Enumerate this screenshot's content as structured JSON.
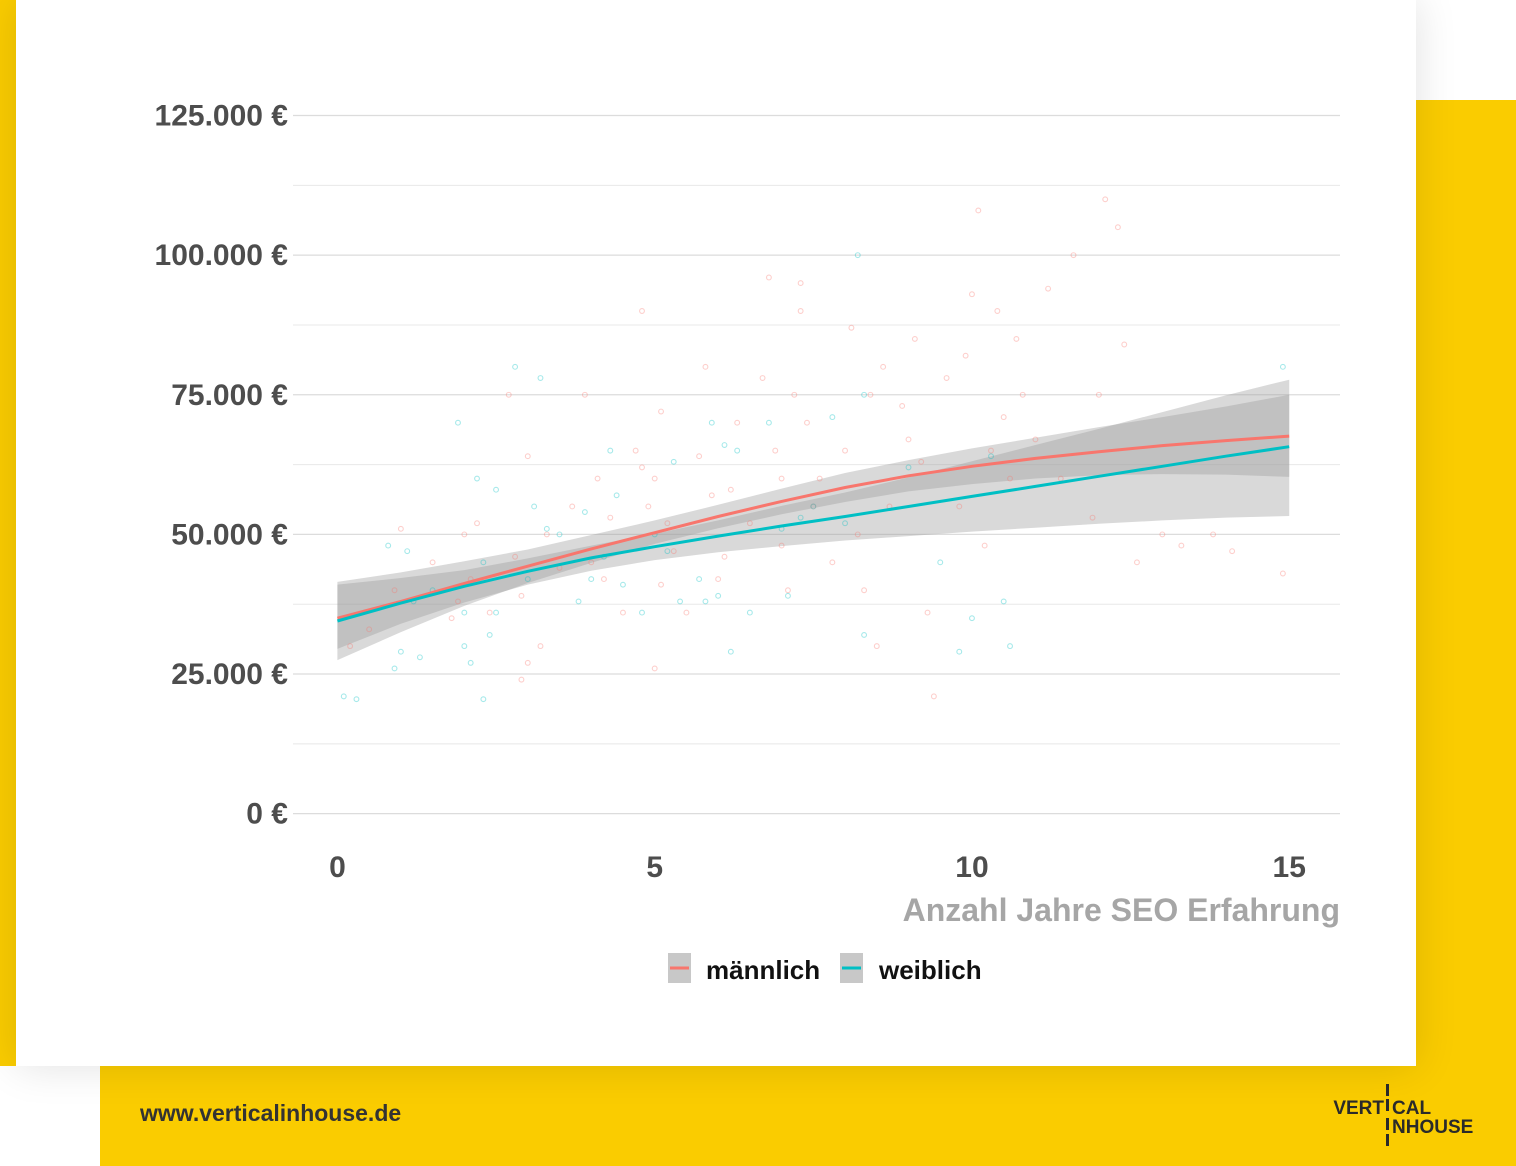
{
  "page": {
    "website": "www.verticalinhouse.de",
    "logo": {
      "line1_left": "VERT",
      "line1_right": "CAL",
      "line2_right": "NHOUSE"
    },
    "colors": {
      "yellow": "#FACC00",
      "card": "#ffffff"
    }
  },
  "chart_data": {
    "type": "scatter",
    "title": "",
    "xlabel": "Anzahl Jahre SEO Erfahrung",
    "ylabel": "",
    "xlim": [
      -0.7,
      15.8
    ],
    "ylim": [
      -4000,
      131000
    ],
    "x_ticks": [
      0,
      5,
      10,
      15
    ],
    "x_tick_labels": [
      "0",
      "5",
      "10",
      "15"
    ],
    "y_ticks": [
      0,
      25000,
      50000,
      75000,
      100000,
      125000
    ],
    "y_tick_labels": [
      "0 €",
      "25.000 €",
      "50.000 €",
      "75.000 €",
      "100.000 €",
      "125.000 €"
    ],
    "y_minor_ticks": [
      12500,
      37500,
      62500,
      87500,
      112500
    ],
    "grid": true,
    "legend_position": "bottom",
    "series": [
      {
        "name": "männlich",
        "color": "#F8766D",
        "trend_x": [
          0,
          1,
          2,
          3,
          4,
          5,
          6,
          7,
          8,
          9,
          10,
          11,
          12,
          13,
          14,
          15
        ],
        "trend_y": [
          35000,
          38000,
          41200,
          44300,
          47400,
          50300,
          53200,
          55900,
          58400,
          60500,
          62200,
          63600,
          64800,
          65900,
          66800,
          67600
        ],
        "ci_lower": [
          27500,
          32500,
          37200,
          41300,
          44900,
          48300,
          51100,
          53600,
          55800,
          57700,
          59000,
          60000,
          60600,
          60800,
          60700,
          60300
        ],
        "ci_upper": [
          41500,
          43200,
          45200,
          47300,
          49900,
          52500,
          55300,
          58200,
          61000,
          63300,
          65400,
          67300,
          69200,
          71000,
          72900,
          75000
        ],
        "points": [
          [
            0.2,
            30000
          ],
          [
            0.5,
            33000
          ],
          [
            0.9,
            40000
          ],
          [
            1.0,
            51000
          ],
          [
            1.5,
            45000
          ],
          [
            1.8,
            35000
          ],
          [
            1.9,
            38000
          ],
          [
            2.0,
            50000
          ],
          [
            2.1,
            42000
          ],
          [
            2.2,
            52000
          ],
          [
            2.4,
            36000
          ],
          [
            2.7,
            75000
          ],
          [
            2.8,
            46000
          ],
          [
            2.9,
            24000
          ],
          [
            2.9,
            39000
          ],
          [
            3.0,
            64000
          ],
          [
            3.0,
            27000
          ],
          [
            3.2,
            30000
          ],
          [
            3.3,
            50000
          ],
          [
            3.5,
            44000
          ],
          [
            3.7,
            55000
          ],
          [
            3.9,
            75000
          ],
          [
            4.0,
            45000
          ],
          [
            4.1,
            60000
          ],
          [
            4.2,
            42000
          ],
          [
            4.3,
            53000
          ],
          [
            4.5,
            36000
          ],
          [
            4.7,
            65000
          ],
          [
            4.8,
            62000
          ],
          [
            4.8,
            90000
          ],
          [
            4.9,
            55000
          ],
          [
            5.0,
            60000
          ],
          [
            5.0,
            26000
          ],
          [
            5.1,
            72000
          ],
          [
            5.1,
            41000
          ],
          [
            5.2,
            52000
          ],
          [
            5.3,
            47000
          ],
          [
            5.5,
            36000
          ],
          [
            5.7,
            64000
          ],
          [
            5.8,
            80000
          ],
          [
            5.9,
            57000
          ],
          [
            6.0,
            42000
          ],
          [
            6.1,
            46000
          ],
          [
            6.2,
            58000
          ],
          [
            6.3,
            70000
          ],
          [
            6.5,
            52000
          ],
          [
            6.7,
            78000
          ],
          [
            6.8,
            96000
          ],
          [
            6.9,
            65000
          ],
          [
            7.0,
            60000
          ],
          [
            7.0,
            48000
          ],
          [
            7.1,
            40000
          ],
          [
            7.2,
            75000
          ],
          [
            7.3,
            90000
          ],
          [
            7.3,
            95000
          ],
          [
            7.4,
            70000
          ],
          [
            7.5,
            55000
          ],
          [
            7.6,
            60000
          ],
          [
            7.8,
            45000
          ],
          [
            8.0,
            65000
          ],
          [
            8.1,
            87000
          ],
          [
            8.2,
            50000
          ],
          [
            8.3,
            40000
          ],
          [
            8.4,
            75000
          ],
          [
            8.5,
            30000
          ],
          [
            8.6,
            80000
          ],
          [
            8.7,
            55000
          ],
          [
            8.9,
            73000
          ],
          [
            9.0,
            67000
          ],
          [
            9.1,
            85000
          ],
          [
            9.2,
            63000
          ],
          [
            9.3,
            36000
          ],
          [
            9.4,
            21000
          ],
          [
            9.6,
            78000
          ],
          [
            9.8,
            55000
          ],
          [
            9.9,
            82000
          ],
          [
            10.0,
            93000
          ],
          [
            10.1,
            108000
          ],
          [
            10.2,
            48000
          ],
          [
            10.3,
            65000
          ],
          [
            10.4,
            90000
          ],
          [
            10.5,
            71000
          ],
          [
            10.6,
            60000
          ],
          [
            10.7,
            85000
          ],
          [
            10.8,
            75000
          ],
          [
            11.0,
            67000
          ],
          [
            11.2,
            94000
          ],
          [
            11.4,
            60000
          ],
          [
            11.6,
            100000
          ],
          [
            11.9,
            53000
          ],
          [
            12.0,
            75000
          ],
          [
            12.1,
            110000
          ],
          [
            12.3,
            105000
          ],
          [
            12.4,
            84000
          ],
          [
            12.6,
            45000
          ],
          [
            13.0,
            50000
          ],
          [
            13.3,
            48000
          ],
          [
            13.8,
            50000
          ],
          [
            14.1,
            47000
          ],
          [
            14.9,
            43000
          ]
        ]
      },
      {
        "name": "weiblich",
        "color": "#00BFC4",
        "trend_x": [
          0,
          1,
          2,
          3,
          4,
          5,
          6,
          7,
          8,
          9,
          10,
          11,
          12,
          13,
          14,
          15
        ],
        "trend_y": [
          34500,
          37700,
          40700,
          43400,
          45800,
          47800,
          49700,
          51500,
          53200,
          55000,
          56800,
          58600,
          60400,
          62200,
          64000,
          65700
        ],
        "ci_lower": [
          29500,
          34000,
          37800,
          41000,
          43500,
          45400,
          46800,
          47900,
          48900,
          49700,
          50500,
          51200,
          51900,
          52500,
          53000,
          53300
        ],
        "ci_upper": [
          41000,
          42200,
          43600,
          45700,
          48000,
          50100,
          52500,
          55100,
          57500,
          60200,
          63100,
          66000,
          68900,
          71900,
          74900,
          77700
        ],
        "points": [
          [
            0.1,
            21000
          ],
          [
            0.3,
            20500
          ],
          [
            0.8,
            48000
          ],
          [
            0.9,
            26000
          ],
          [
            1.0,
            29000
          ],
          [
            1.1,
            47000
          ],
          [
            1.2,
            38000
          ],
          [
            1.3,
            28000
          ],
          [
            1.5,
            40000
          ],
          [
            1.9,
            70000
          ],
          [
            2.0,
            30000
          ],
          [
            2.0,
            36000
          ],
          [
            2.1,
            27000
          ],
          [
            2.2,
            60000
          ],
          [
            2.3,
            20500
          ],
          [
            2.3,
            45000
          ],
          [
            2.4,
            32000
          ],
          [
            2.5,
            58000
          ],
          [
            2.5,
            36000
          ],
          [
            2.8,
            80000
          ],
          [
            3.0,
            42000
          ],
          [
            3.1,
            55000
          ],
          [
            3.2,
            78000
          ],
          [
            3.3,
            51000
          ],
          [
            3.5,
            50000
          ],
          [
            3.8,
            38000
          ],
          [
            3.9,
            54000
          ],
          [
            4.0,
            42000
          ],
          [
            4.2,
            46000
          ],
          [
            4.3,
            65000
          ],
          [
            4.4,
            57000
          ],
          [
            4.5,
            41000
          ],
          [
            4.8,
            36000
          ],
          [
            5.0,
            50000
          ],
          [
            5.2,
            47000
          ],
          [
            5.3,
            63000
          ],
          [
            5.4,
            38000
          ],
          [
            5.7,
            42000
          ],
          [
            5.8,
            38000
          ],
          [
            5.9,
            70000
          ],
          [
            6.0,
            39000
          ],
          [
            6.1,
            66000
          ],
          [
            6.2,
            29000
          ],
          [
            6.3,
            65000
          ],
          [
            6.5,
            36000
          ],
          [
            6.8,
            70000
          ],
          [
            7.0,
            51000
          ],
          [
            7.1,
            39000
          ],
          [
            7.3,
            53000
          ],
          [
            7.5,
            55000
          ],
          [
            7.8,
            71000
          ],
          [
            8.0,
            52000
          ],
          [
            8.2,
            100000
          ],
          [
            8.3,
            75000
          ],
          [
            8.3,
            32000
          ],
          [
            9.0,
            62000
          ],
          [
            9.5,
            45000
          ],
          [
            9.8,
            29000
          ],
          [
            10.0,
            35000
          ],
          [
            10.3,
            64000
          ],
          [
            10.5,
            38000
          ],
          [
            10.6,
            30000
          ],
          [
            14.9,
            80000
          ]
        ]
      }
    ]
  }
}
